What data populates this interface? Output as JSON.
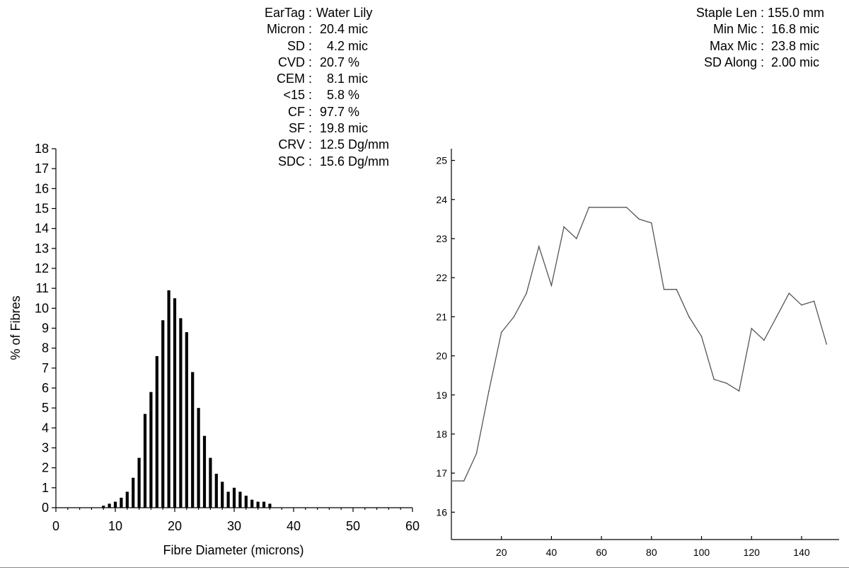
{
  "stats_left": [
    {
      "key": "EarTag :",
      "value": "Water Lily"
    },
    {
      "key": "Micron :",
      "value": " 20.4 mic"
    },
    {
      "key": "SD :",
      "value": "   4.2 mic"
    },
    {
      "key": "CVD :",
      "value": " 20.7 %"
    },
    {
      "key": "CEM :",
      "value": "   8.1 mic"
    },
    {
      "key": "<15 :",
      "value": "   5.8 %"
    },
    {
      "key": "CF :",
      "value": " 97.7 %"
    },
    {
      "key": "SF :",
      "value": " 19.8 mic"
    },
    {
      "key": "CRV :",
      "value": " 12.5 Dg/mm"
    },
    {
      "key": "SDC :",
      "value": " 15.6 Dg/mm"
    }
  ],
  "stats_right": [
    {
      "key": "Staple Len :",
      "value": "155.0 mm"
    },
    {
      "key": "Min Mic :",
      "value": " 16.8 mic"
    },
    {
      "key": "Max Mic :",
      "value": " 23.8 mic"
    },
    {
      "key": "SD Along :",
      "value": " 2.00 mic"
    }
  ],
  "chart_data": [
    {
      "type": "bar",
      "title": "",
      "xlabel": "Fibre Diameter (microns)",
      "ylabel": "% of Fibres",
      "xlim": [
        0,
        60
      ],
      "ylim": [
        0,
        18
      ],
      "x_ticks": [
        0,
        10,
        20,
        30,
        40,
        50,
        60
      ],
      "y_ticks": [
        0,
        1,
        2,
        3,
        4,
        5,
        6,
        7,
        8,
        9,
        10,
        11,
        12,
        13,
        14,
        15,
        16,
        17,
        18
      ],
      "grid": false,
      "x": [
        8,
        9,
        10,
        11,
        12,
        13,
        14,
        15,
        16,
        17,
        18,
        19,
        20,
        21,
        22,
        23,
        24,
        25,
        26,
        27,
        28,
        29,
        30,
        31,
        32,
        33,
        34,
        35,
        36
      ],
      "values": [
        0.1,
        0.2,
        0.3,
        0.5,
        0.8,
        1.5,
        2.5,
        4.7,
        5.8,
        7.6,
        9.4,
        10.9,
        10.5,
        9.5,
        8.8,
        6.8,
        5.0,
        3.6,
        2.5,
        1.7,
        1.3,
        0.8,
        1.0,
        0.8,
        0.6,
        0.4,
        0.3,
        0.3,
        0.2
      ]
    },
    {
      "type": "line",
      "title": "",
      "xlabel": "",
      "ylabel": "",
      "xlim": [
        0,
        155
      ],
      "ylim": [
        15.3,
        25.3
      ],
      "x_ticks": [
        20,
        40,
        60,
        80,
        100,
        120,
        140
      ],
      "y_ticks": [
        16,
        17,
        18,
        19,
        20,
        21,
        22,
        23,
        24,
        25
      ],
      "grid": false,
      "x": [
        0,
        5,
        10,
        15,
        20,
        25,
        30,
        35,
        40,
        45,
        50,
        55,
        60,
        65,
        70,
        75,
        80,
        85,
        90,
        95,
        100,
        105,
        110,
        115,
        120,
        125,
        130,
        135,
        140,
        145,
        150
      ],
      "y": [
        16.8,
        16.8,
        17.5,
        19.1,
        20.6,
        21.0,
        21.6,
        22.8,
        21.8,
        23.3,
        23.0,
        23.8,
        23.8,
        23.8,
        23.8,
        23.5,
        23.4,
        21.7,
        21.7,
        21.0,
        20.5,
        19.4,
        19.3,
        19.1,
        20.7,
        20.4,
        21.0,
        21.6,
        21.3,
        21.4,
        20.3
      ]
    }
  ]
}
